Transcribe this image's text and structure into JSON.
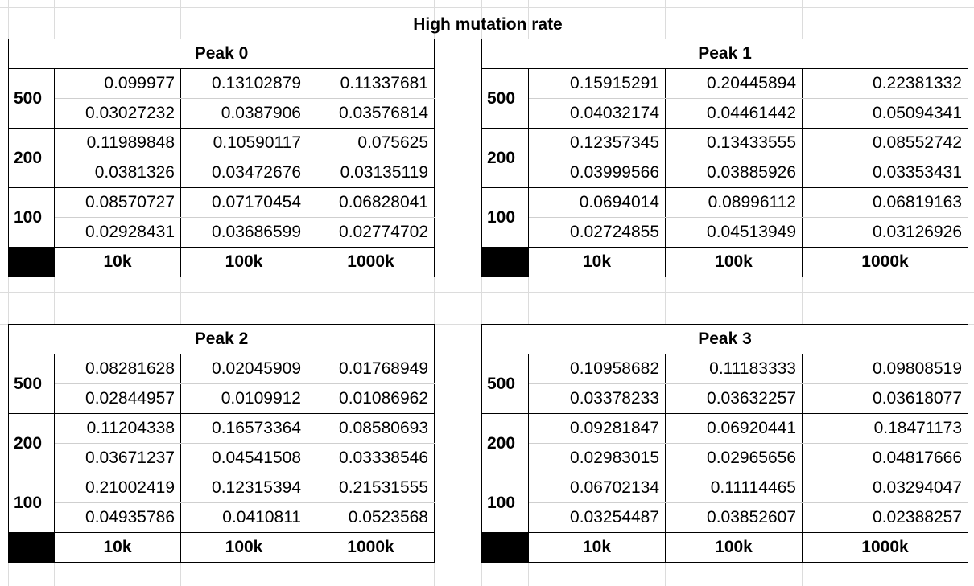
{
  "title": "High mutation rate",
  "tables": [
    {
      "name": "Peak 0",
      "rows": [
        {
          "label": "500",
          "top": [
            "0.099977",
            "0.13102879",
            "0.11337681"
          ],
          "bottom": [
            "0.03027232",
            "0.0387906",
            "0.03576814"
          ]
        },
        {
          "label": "200",
          "top": [
            "0.11989848",
            "0.10590117",
            "0.075625"
          ],
          "bottom": [
            "0.0381326",
            "0.03472676",
            "0.03135119"
          ]
        },
        {
          "label": "100",
          "top": [
            "0.08570727",
            "0.07170454",
            "0.06828041"
          ],
          "bottom": [
            "0.02928431",
            "0.03686599",
            "0.02774702"
          ]
        }
      ],
      "columns": [
        "10k",
        "100k",
        "1000k"
      ]
    },
    {
      "name": "Peak 1",
      "rows": [
        {
          "label": "500",
          "top": [
            "0.15915291",
            "0.20445894",
            "0.22381332"
          ],
          "bottom": [
            "0.04032174",
            "0.04461442",
            "0.05094341"
          ]
        },
        {
          "label": "200",
          "top": [
            "0.12357345",
            "0.13433555",
            "0.08552742"
          ],
          "bottom": [
            "0.03999566",
            "0.03885926",
            "0.03353431"
          ]
        },
        {
          "label": "100",
          "top": [
            "0.0694014",
            "0.08996112",
            "0.06819163"
          ],
          "bottom": [
            "0.02724855",
            "0.04513949",
            "0.03126926"
          ]
        }
      ],
      "columns": [
        "10k",
        "100k",
        "1000k"
      ]
    },
    {
      "name": "Peak 2",
      "rows": [
        {
          "label": "500",
          "top": [
            "0.08281628",
            "0.02045909",
            "0.01768949"
          ],
          "bottom": [
            "0.02844957",
            "0.0109912",
            "0.01086962"
          ]
        },
        {
          "label": "200",
          "top": [
            "0.11204338",
            "0.16573364",
            "0.08580693"
          ],
          "bottom": [
            "0.03671237",
            "0.04541508",
            "0.03338546"
          ]
        },
        {
          "label": "100",
          "top": [
            "0.21002419",
            "0.12315394",
            "0.21531555"
          ],
          "bottom": [
            "0.04935786",
            "0.0410811",
            "0.0523568"
          ]
        }
      ],
      "columns": [
        "10k",
        "100k",
        "1000k"
      ]
    },
    {
      "name": "Peak 3",
      "rows": [
        {
          "label": "500",
          "top": [
            "0.10958682",
            "0.11183333",
            "0.09808519"
          ],
          "bottom": [
            "0.03378233",
            "0.03632257",
            "0.03618077"
          ]
        },
        {
          "label": "200",
          "top": [
            "0.09281847",
            "0.06920441",
            "0.18471173"
          ],
          "bottom": [
            "0.02983015",
            "0.02965656",
            "0.04817666"
          ]
        },
        {
          "label": "100",
          "top": [
            "0.06702134",
            "0.11114465",
            "0.03294047"
          ],
          "bottom": [
            "0.03254487",
            "0.03852607",
            "0.02388257"
          ]
        }
      ],
      "columns": [
        "10k",
        "100k",
        "1000k"
      ]
    }
  ]
}
